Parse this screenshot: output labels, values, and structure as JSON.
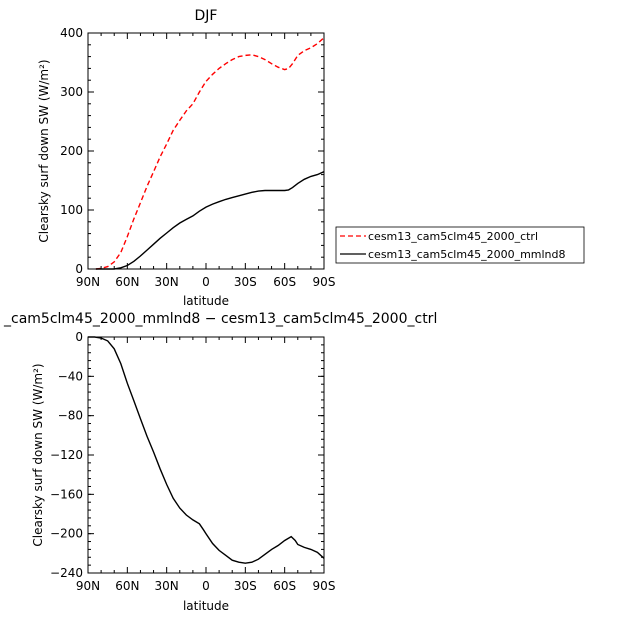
{
  "chart_data": [
    {
      "type": "line",
      "title": "DJF",
      "xlabel": "latitude",
      "ylabel": "Clearsky surf down SW (W/m²)",
      "xlim": [
        90,
        -90
      ],
      "ylim": [
        0,
        400
      ],
      "x_ticks": [
        90,
        60,
        30,
        0,
        -30,
        -60,
        -90
      ],
      "x_tick_labels": [
        "90N",
        "60N",
        "30N",
        "0",
        "30S",
        "60S",
        "90S"
      ],
      "y_ticks": [
        0,
        100,
        200,
        300,
        400
      ],
      "y_tick_labels": [
        "0",
        "100",
        "200",
        "300",
        "400"
      ],
      "legend": "right",
      "series": [
        {
          "name": "cesm13_cam5clm45_2000_ctrl",
          "color": "#ff0000",
          "style": "dashed",
          "x": [
            84,
            80,
            75,
            70,
            65,
            60,
            55,
            50,
            45,
            40,
            35,
            30,
            25,
            20,
            15,
            10,
            5,
            0,
            -5,
            -10,
            -15,
            -20,
            -25,
            -30,
            -35,
            -40,
            -45,
            -50,
            -55,
            -60,
            -63,
            -66,
            -70,
            -75,
            -80,
            -85,
            -90
          ],
          "y": [
            0,
            1,
            4,
            12,
            28,
            55,
            85,
            112,
            140,
            165,
            190,
            212,
            235,
            252,
            268,
            280,
            300,
            318,
            330,
            340,
            348,
            355,
            360,
            362,
            363,
            360,
            355,
            348,
            342,
            338,
            340,
            348,
            362,
            370,
            375,
            382,
            392
          ]
        },
        {
          "name": "cesm13_cam5clm45_2000_mmlnd8",
          "color": "#000000",
          "style": "solid",
          "x": [
            84,
            80,
            75,
            70,
            65,
            60,
            55,
            50,
            45,
            40,
            35,
            30,
            25,
            20,
            15,
            10,
            5,
            0,
            -5,
            -10,
            -15,
            -20,
            -25,
            -30,
            -35,
            -40,
            -45,
            -50,
            -55,
            -60,
            -63,
            -66,
            -70,
            -75,
            -80,
            -85,
            -90
          ],
          "y": [
            0,
            0,
            0,
            0,
            2,
            6,
            13,
            22,
            32,
            42,
            52,
            61,
            70,
            78,
            84,
            90,
            98,
            105,
            110,
            114,
            118,
            121,
            124,
            127,
            130,
            132,
            133,
            133,
            133,
            133,
            134,
            138,
            145,
            152,
            157,
            160,
            165
          ]
        }
      ]
    },
    {
      "type": "line",
      "title": "_cam5clm45_2000_mmlnd8 − cesm13_cam5clm45_2000_ctrl",
      "xlabel": "latitude",
      "ylabel": "Clearsky surf down SW (W/m²)",
      "xlim": [
        90,
        -90
      ],
      "ylim": [
        -240,
        0
      ],
      "x_ticks": [
        90,
        60,
        30,
        0,
        -30,
        -60,
        -90
      ],
      "x_tick_labels": [
        "90N",
        "60N",
        "30N",
        "0",
        "30S",
        "60S",
        "90S"
      ],
      "y_ticks": [
        0,
        -40,
        -80,
        -120,
        -160,
        -200,
        -240
      ],
      "y_tick_labels": [
        "0",
        "−40",
        "−80",
        "−120",
        "−160",
        "−200",
        "−240"
      ],
      "series": [
        {
          "name": "",
          "color": "#000000",
          "style": "solid",
          "x": [
            90,
            85,
            80,
            75,
            70,
            65,
            60,
            55,
            50,
            45,
            40,
            35,
            30,
            25,
            20,
            15,
            10,
            5,
            2,
            0,
            -5,
            -10,
            -15,
            -20,
            -25,
            -30,
            -35,
            -40,
            -45,
            -50,
            -55,
            -60,
            -65,
            -68,
            -70,
            -75,
            -80,
            -85,
            -90
          ],
          "y": [
            0,
            0,
            -1,
            -4,
            -12,
            -27,
            -47,
            -65,
            -83,
            -101,
            -117,
            -134,
            -150,
            -164,
            -174,
            -181,
            -186,
            -190,
            -196,
            -200,
            -210,
            -217,
            -222,
            -227,
            -229,
            -230,
            -229,
            -226,
            -221,
            -216,
            -212,
            -207,
            -203,
            -207,
            -211,
            -214,
            -216,
            -219,
            -225
          ]
        }
      ]
    }
  ]
}
